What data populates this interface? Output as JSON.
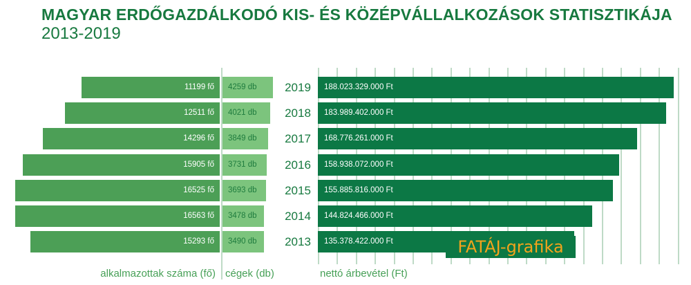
{
  "header": {
    "title": "MAGYAR ERDŐGAZDÁLKODÓ KIS- ÉS KÖZÉPVÁLLALKOZÁSOK STATISZTIKÁJA",
    "subtitle": "2013-2019"
  },
  "axis_labels": {
    "employees": "alkalmazottak száma (fő)",
    "companies": "cégek (db)",
    "revenue": "nettó árbevétel (Ft)"
  },
  "watermark": "FATÁJ-grafika",
  "colors": {
    "title_green": "#17793f",
    "employees_bar": "#4c9f56",
    "companies_bar": "#7cc47d",
    "revenue_bar": "#0c7845",
    "gridline": "#bedac6",
    "watermark_text": "#f2a31c",
    "bar_text_light": "#ffffff",
    "bar_text_dark": "#1f7c3e"
  },
  "chart_data": {
    "type": "bar",
    "orientation": "horizontal",
    "title": "MAGYAR ERDŐGAZDÁLKODÓ KIS- ÉS KÖZÉPVÁLLALKOZÁSOK STATISZTIKÁJA 2013-2019",
    "categories": [
      "2019",
      "2018",
      "2017",
      "2016",
      "2015",
      "2014",
      "2013"
    ],
    "series": [
      {
        "name": "alkalmazottak száma (fő)",
        "values": [
          11199,
          12511,
          14296,
          15905,
          16525,
          16563,
          15293
        ],
        "labels": [
          "11199 fő",
          "12511 fő",
          "14296 fő",
          "15905 fő",
          "16525 fő",
          "16563 fő",
          "15293 fő"
        ],
        "direction": "left"
      },
      {
        "name": "cégek (db)",
        "values": [
          4259,
          4021,
          3849,
          3731,
          3693,
          3478,
          3490
        ],
        "labels": [
          "4259 db",
          "4021 db",
          "3849 db",
          "3731 db",
          "3693 db",
          "3478 db",
          "3490 db"
        ],
        "direction": "right"
      },
      {
        "name": "nettó árbevétel (Ft)",
        "values": [
          188023329000,
          183989402000,
          168776261000,
          158938072000,
          155885816000,
          144824466000,
          135378422000
        ],
        "labels": [
          "188.023.329.000 Ft",
          "183.989.402.000 Ft",
          "168.776.261.000 Ft",
          "158.938.072.000 Ft",
          "155.885.816.000 Ft",
          "144.824.466.000 Ft",
          "135.378.422.000 Ft"
        ],
        "direction": "right"
      }
    ],
    "revenue_axis": {
      "min": 0,
      "max": 190000000000,
      "gridline_step": 10000000000
    },
    "grid": true,
    "legend_position": "bottom-as-axis-captions"
  }
}
